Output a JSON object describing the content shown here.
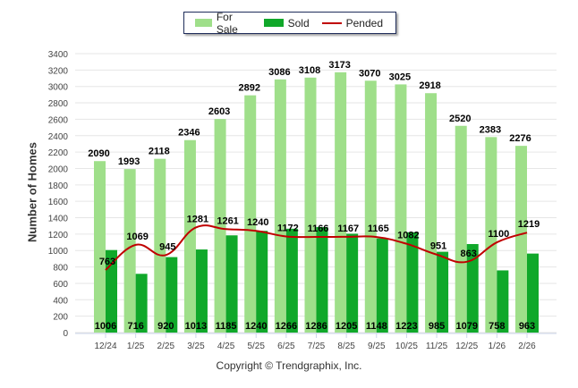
{
  "chart_data": {
    "type": "bar",
    "title": "",
    "xlabel": "",
    "ylabel": "Number of Homes",
    "ylim": [
      0,
      3400
    ],
    "yticks": [
      0,
      200,
      400,
      600,
      800,
      1000,
      1200,
      1400,
      1600,
      1800,
      2000,
      2200,
      2400,
      2600,
      2800,
      3000,
      3200,
      3400
    ],
    "grid": true,
    "legend_position": "top-center",
    "categories": [
      "12/24",
      "1/25",
      "2/25",
      "3/25",
      "4/25",
      "5/25",
      "6/25",
      "7/25",
      "8/25",
      "9/25",
      "10/25",
      "11/25",
      "12/25",
      "1/26",
      "2/26"
    ],
    "series": [
      {
        "name": "For Sale",
        "kind": "bar",
        "color": "#9fdf8a",
        "values": [
          2090,
          1993,
          2118,
          2346,
          2603,
          2892,
          3086,
          3108,
          3173,
          3070,
          3025,
          2918,
          2520,
          2383,
          2276
        ]
      },
      {
        "name": "Sold",
        "kind": "bar",
        "color": "#10a82a",
        "values": [
          1006,
          716,
          920,
          1013,
          1185,
          1240,
          1266,
          1286,
          1205,
          1148,
          1223,
          985,
          1079,
          758,
          963
        ]
      },
      {
        "name": "Pended",
        "kind": "line",
        "color": "#c00000",
        "values": [
          763,
          1069,
          945,
          1281,
          1261,
          1240,
          1172,
          1166,
          1167,
          1165,
          1082,
          951,
          863,
          1100,
          1219
        ]
      }
    ]
  },
  "legend": {
    "for_sale": "For Sale",
    "sold": "Sold",
    "pended": "Pended"
  },
  "footer": {
    "copyright": "Copyright © Trendgraphix, Inc."
  }
}
